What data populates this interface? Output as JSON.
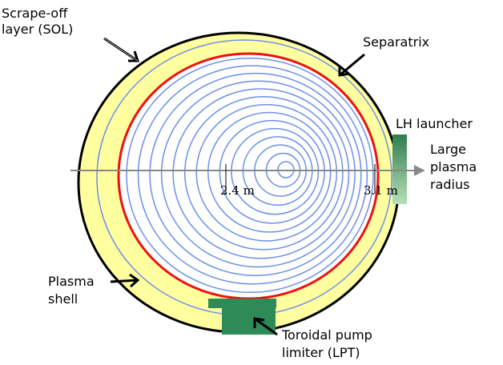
{
  "labels": {
    "sol": [
      "Scrape-off",
      "layer (SOL)"
    ],
    "separatrix": "Separatrix",
    "lh_launcher": "LH launcher",
    "radius": [
      "Large",
      "plasma",
      "radius"
    ],
    "tick_inner": "2.4 m",
    "tick_outer": "3.1 m",
    "shell": [
      "Plasma",
      "shell"
    ],
    "limiter": [
      "Toroidal pump",
      "limiter (LPT)"
    ]
  }
}
